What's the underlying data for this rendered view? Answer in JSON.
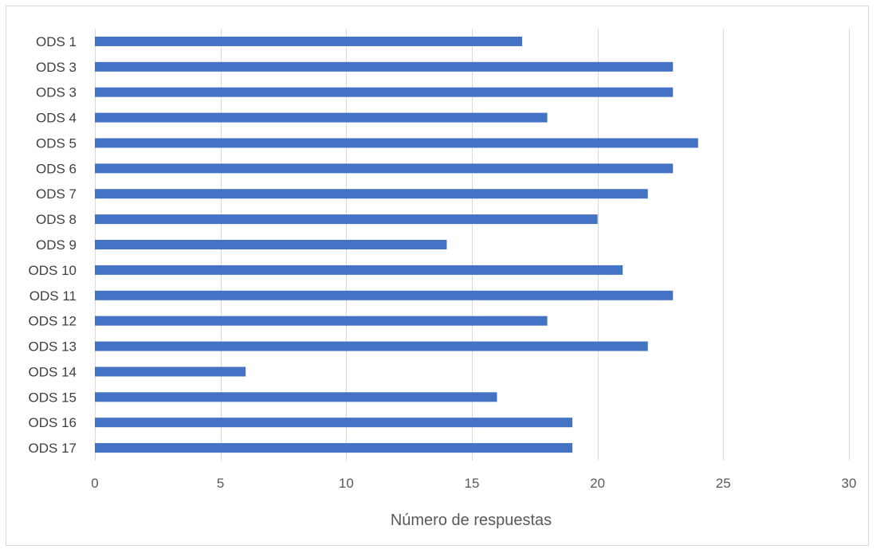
{
  "chart_data": {
    "type": "bar",
    "orientation": "horizontal",
    "categories": [
      "ODS 1",
      "ODS 3",
      "ODS 3",
      "ODS 4",
      "ODS 5",
      "ODS 6",
      "ODS 7",
      "ODS 8",
      "ODS 9",
      "ODS 10",
      "ODS 11",
      "ODS 12",
      "ODS 13",
      "ODS 14",
      "ODS 15",
      "ODS 16",
      "ODS 17"
    ],
    "values": [
      17,
      23,
      23,
      18,
      24,
      23,
      22,
      20,
      14,
      21,
      23,
      18,
      22,
      6,
      16,
      19,
      19
    ],
    "xlabel": "Número de respuestas",
    "ylabel": "",
    "xlim": [
      0,
      30
    ],
    "xticks": [
      "0",
      "5",
      "10",
      "15",
      "20",
      "25",
      "30"
    ],
    "grid": "vertical",
    "legend": "none",
    "bar_color": "#4472c4"
  }
}
